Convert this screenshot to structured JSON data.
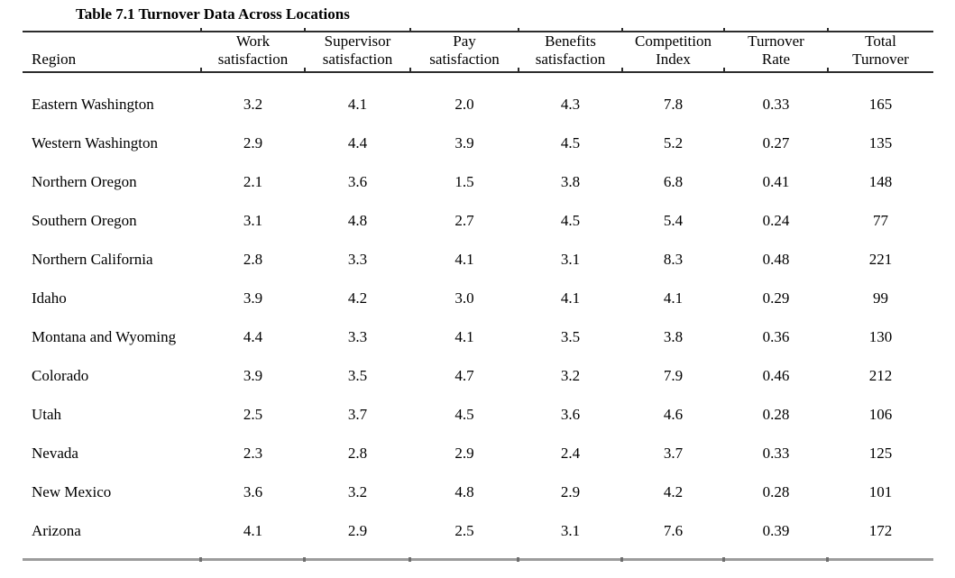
{
  "title": "Table 7.1 Turnover Data Across Locations",
  "colors": {
    "rule_dark": "#2c2c2c",
    "rule_gray": "#9c9c9c",
    "text": "#000000"
  },
  "table": {
    "columns": [
      {
        "line1": "",
        "line2": "Region"
      },
      {
        "line1": "Work",
        "line2": "satisfaction"
      },
      {
        "line1": "Supervisor",
        "line2": "satisfaction"
      },
      {
        "line1": "Pay",
        "line2": "satisfaction"
      },
      {
        "line1": "Benefits",
        "line2": "satisfaction"
      },
      {
        "line1": "Competition",
        "line2": "Index"
      },
      {
        "line1": "Turnover",
        "line2": "Rate"
      },
      {
        "line1": "Total",
        "line2": "Turnover"
      }
    ],
    "rows": [
      {
        "region": "Eastern Washington",
        "values": [
          "3.2",
          "4.1",
          "2.0",
          "4.3",
          "7.8",
          "0.33",
          "165"
        ]
      },
      {
        "region": "Western Washington",
        "values": [
          "2.9",
          "4.4",
          "3.9",
          "4.5",
          "5.2",
          "0.27",
          "135"
        ]
      },
      {
        "region": "Northern Oregon",
        "values": [
          "2.1",
          "3.6",
          "1.5",
          "3.8",
          "6.8",
          "0.41",
          "148"
        ]
      },
      {
        "region": "Southern Oregon",
        "values": [
          "3.1",
          "4.8",
          "2.7",
          "4.5",
          "5.4",
          "0.24",
          "77"
        ]
      },
      {
        "region": "Northern California",
        "values": [
          "2.8",
          "3.3",
          "4.1",
          "3.1",
          "8.3",
          "0.48",
          "221"
        ]
      },
      {
        "region": "Idaho",
        "values": [
          "3.9",
          "4.2",
          "3.0",
          "4.1",
          "4.1",
          "0.29",
          "99"
        ]
      },
      {
        "region": "Montana and Wyoming",
        "values": [
          "4.4",
          "3.3",
          "4.1",
          "3.5",
          "3.8",
          "0.36",
          "130"
        ]
      },
      {
        "region": "Colorado",
        "values": [
          "3.9",
          "3.5",
          "4.7",
          "3.2",
          "7.9",
          "0.46",
          "212"
        ]
      },
      {
        "region": "Utah",
        "values": [
          "2.5",
          "3.7",
          "4.5",
          "3.6",
          "4.6",
          "0.28",
          "106"
        ]
      },
      {
        "region": "Nevada",
        "values": [
          "2.3",
          "2.8",
          "2.9",
          "2.4",
          "3.7",
          "0.33",
          "125"
        ]
      },
      {
        "region": "New Mexico",
        "values": [
          "3.6",
          "3.2",
          "4.8",
          "2.9",
          "4.2",
          "0.28",
          "101"
        ]
      },
      {
        "region": "Arizona",
        "values": [
          "4.1",
          "2.9",
          "2.5",
          "3.1",
          "7.6",
          "0.39",
          "172"
        ]
      }
    ]
  }
}
